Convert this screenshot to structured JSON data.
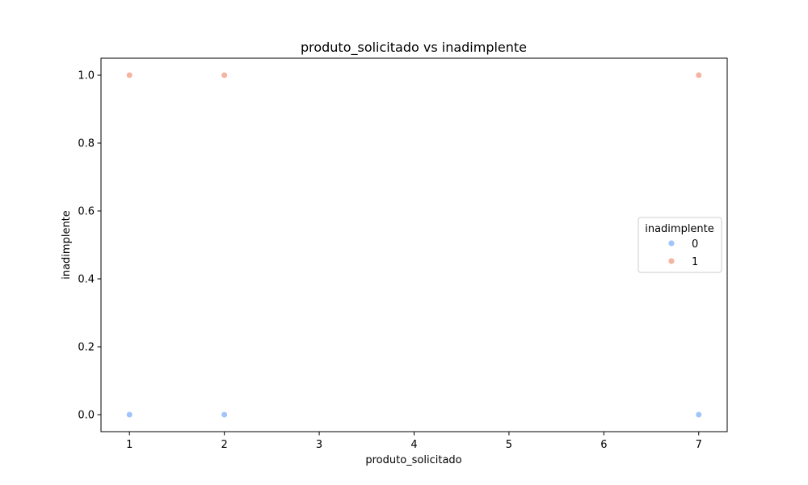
{
  "chart_data": {
    "type": "scatter",
    "title": "produto_solicitado vs inadimplente",
    "xlabel": "produto_solicitado",
    "ylabel": "inadimplente",
    "xlim": [
      0.7,
      7.3
    ],
    "ylim": [
      -0.05,
      1.05
    ],
    "xticks": [
      1,
      2,
      3,
      4,
      5,
      6,
      7
    ],
    "xtick_labels": [
      "1",
      "2",
      "3",
      "4",
      "5",
      "6",
      "7"
    ],
    "yticks": [
      0.0,
      0.2,
      0.4,
      0.6,
      0.8,
      1.0
    ],
    "ytick_labels": [
      "0.0",
      "0.2",
      "0.4",
      "0.6",
      "0.8",
      "1.0"
    ],
    "grid": false,
    "legend": {
      "title": "inadimplente",
      "placement": "center-right"
    },
    "series": [
      {
        "name": "0",
        "color": "#a1c4fc",
        "points": [
          {
            "x": 1,
            "y": 0
          },
          {
            "x": 2,
            "y": 0
          },
          {
            "x": 7,
            "y": 0
          }
        ]
      },
      {
        "name": "1",
        "color": "#f4b4a0",
        "points": [
          {
            "x": 1,
            "y": 1
          },
          {
            "x": 2,
            "y": 1
          },
          {
            "x": 7,
            "y": 1
          }
        ]
      }
    ]
  }
}
